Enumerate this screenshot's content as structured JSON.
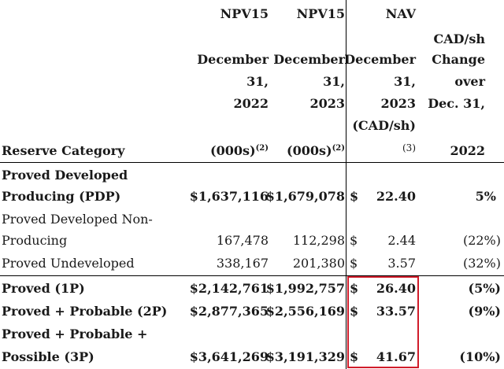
{
  "header": {
    "col1": {
      "l1": "NPV15",
      "l2": "December",
      "l3": "31,",
      "l4": "2022",
      "l5": "(000s)",
      "l5_sup": "(2)"
    },
    "col2": {
      "l1": "NPV15",
      "l2": "December",
      "l3": "31,",
      "l4": "2023",
      "l5": "(000s)",
      "l5_sup": "(2)"
    },
    "col3": {
      "l1": "NAV",
      "l2": "December",
      "l3": "31,",
      "l4": "2023",
      "l5": "(CAD/sh)",
      "l6": "(3)"
    },
    "col4": {
      "l1": "CAD/sh",
      "l2": "Change",
      "l3": "over",
      "l4": "Dec. 31,",
      "l5": "2022"
    },
    "category": "Reserve Category"
  },
  "rows": [
    {
      "label1": "Proved Developed",
      "label2": "Producing (PDP)",
      "npv2022": "$1,637,116",
      "npv2023": "$1,679,078",
      "cur": "$",
      "nav": "22.40",
      "change": "5%"
    },
    {
      "label1": "Proved Developed Non-",
      "label2": "Producing",
      "npv2022": "167,478",
      "npv2023": "112,298",
      "cur": "$",
      "nav": "2.44",
      "change": "(22%)"
    },
    {
      "label1": "Proved Undeveloped",
      "npv2022": "338,167",
      "npv2023": "201,380",
      "cur": "$",
      "nav": "3.57",
      "change": "(32%)"
    },
    {
      "label1": "Proved (1P)",
      "npv2022": "$2,142,761",
      "npv2023": "$1,992,757",
      "cur": "$",
      "nav": "26.40",
      "change": "(5%)"
    },
    {
      "label1": "Proved + Probable (2P)",
      "npv2022": "$2,877,365",
      "npv2023": "$2,556,169",
      "cur": "$",
      "nav": "33.57",
      "change": "(9%)"
    },
    {
      "label1": "Proved + Probable +",
      "label2": "Possible (3P)",
      "npv2022": "$3,641,269",
      "npv2023": "$3,191,329",
      "cur": "$",
      "nav": "41.67",
      "change": "(10%)"
    }
  ],
  "colors": {
    "highlight": "#d01c2a"
  }
}
